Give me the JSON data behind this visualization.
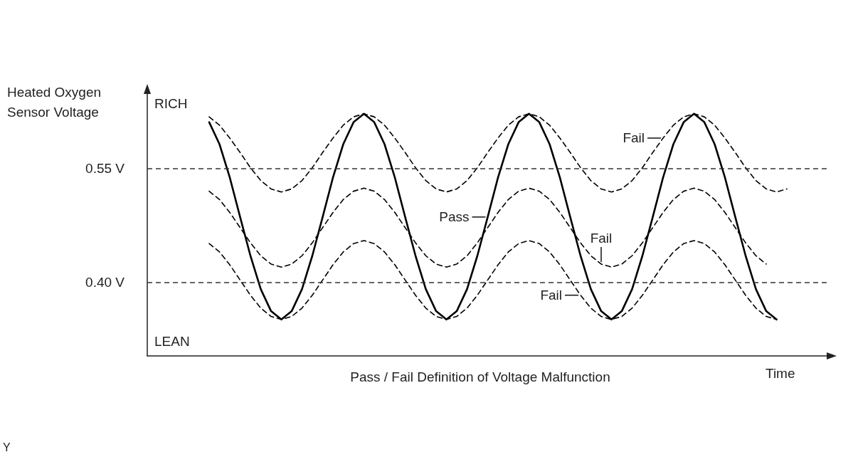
{
  "chart_data": {
    "type": "line",
    "title": "Pass / Fail Definition of Voltage Malfunction",
    "xlabel": "Time",
    "ylabel": "Heated Oxygen Sensor Voltage",
    "annotations": [
      "RICH",
      "LEAN",
      "Y"
    ],
    "categories": [
      null,
      null,
      null,
      null,
      null,
      null,
      null,
      null,
      null,
      null,
      null,
      null,
      null,
      null,
      null,
      null,
      null,
      null,
      null,
      null,
      null,
      null,
      null,
      null,
      null,
      null,
      null,
      null,
      null,
      null,
      null,
      null,
      null,
      null,
      null,
      null,
      null,
      null,
      null,
      null,
      null,
      null,
      null,
      null,
      null,
      null,
      null,
      null,
      null,
      null,
      null,
      null,
      null,
      null,
      null,
      null,
      null,
      null,
      null,
      null,
      null,
      null,
      null,
      null,
      null,
      null,
      null
    ],
    "series": [
      {
        "name": "Pass",
        "color": "#000000",
        "line_style": "solid",
        "values": [
          null,
          null,
          null,
          null,
          null,
          null,
          0.611,
          0.582,
          0.538,
          0.486,
          0.435,
          0.391,
          0.362,
          0.351,
          0.362,
          0.391,
          0.435,
          0.486,
          0.538,
          0.582,
          0.611,
          0.622,
          0.611,
          0.582,
          0.538,
          0.486,
          0.435,
          0.391,
          0.362,
          0.351,
          0.362,
          0.391,
          0.435,
          0.486,
          0.538,
          0.582,
          0.611,
          0.622,
          0.611,
          0.582,
          0.538,
          0.486,
          0.435,
          0.391,
          0.362,
          0.351,
          0.362,
          0.391,
          0.435,
          0.486,
          0.538,
          0.582,
          0.611,
          0.622,
          0.611,
          0.582,
          0.538,
          0.486,
          0.435,
          0.391,
          0.362,
          0.351,
          null,
          null,
          null,
          null,
          null
        ]
      },
      {
        "name": "Fail",
        "color": "#000000",
        "line_style": "dashed",
        "values": [
          null,
          null,
          null,
          null,
          null,
          null,
          0.618,
          0.607,
          0.59,
          0.571,
          0.551,
          0.534,
          0.523,
          0.519,
          0.523,
          0.534,
          0.551,
          0.571,
          0.59,
          0.607,
          0.618,
          0.622,
          0.618,
          0.607,
          0.59,
          0.571,
          0.551,
          0.534,
          0.523,
          0.519,
          0.523,
          0.534,
          0.551,
          0.571,
          0.59,
          0.607,
          0.618,
          0.622,
          0.618,
          0.607,
          0.59,
          0.571,
          0.551,
          0.534,
          0.523,
          0.519,
          0.523,
          0.534,
          0.551,
          0.571,
          0.59,
          0.607,
          0.618,
          0.622,
          0.618,
          0.607,
          0.59,
          0.571,
          0.551,
          0.534,
          0.523,
          0.519,
          0.523,
          null,
          null,
          null,
          null
        ]
      },
      {
        "name": "Fail",
        "color": "#000000",
        "line_style": "dashed",
        "values": [
          null,
          null,
          null,
          null,
          null,
          null,
          0.52,
          0.509,
          0.492,
          0.472,
          0.452,
          0.435,
          0.424,
          0.42,
          0.424,
          0.435,
          0.452,
          0.472,
          0.492,
          0.509,
          0.52,
          0.524,
          0.52,
          0.509,
          0.492,
          0.472,
          0.452,
          0.435,
          0.424,
          0.42,
          0.424,
          0.435,
          0.452,
          0.472,
          0.492,
          0.509,
          0.52,
          0.524,
          0.52,
          0.509,
          0.492,
          0.472,
          0.452,
          0.435,
          0.424,
          0.42,
          0.424,
          0.435,
          0.452,
          0.472,
          0.492,
          0.509,
          0.52,
          0.524,
          0.52,
          0.509,
          0.492,
          0.472,
          0.452,
          0.435,
          0.424,
          null,
          null,
          null,
          null,
          null,
          null
        ]
      },
      {
        "name": "Fail",
        "color": "#000000",
        "line_style": "dashed",
        "values": [
          null,
          null,
          null,
          null,
          null,
          null,
          0.451,
          0.44,
          0.423,
          0.403,
          0.383,
          0.366,
          0.355,
          0.351,
          0.355,
          0.366,
          0.383,
          0.403,
          0.423,
          0.44,
          0.451,
          0.455,
          0.451,
          0.44,
          0.423,
          0.403,
          0.383,
          0.366,
          0.355,
          0.351,
          0.355,
          0.366,
          0.383,
          0.403,
          0.423,
          0.44,
          0.451,
          0.455,
          0.451,
          0.44,
          0.423,
          0.403,
          0.383,
          0.366,
          0.355,
          0.351,
          0.355,
          0.366,
          0.383,
          0.403,
          0.423,
          0.44,
          0.451,
          0.455,
          0.451,
          0.44,
          0.423,
          0.403,
          0.383,
          0.366,
          0.355,
          0.351,
          null,
          null,
          null,
          null,
          null
        ]
      }
    ],
    "ylim": [
      0.303,
      0.65
    ],
    "yticks": [
      {
        "value": 0.55,
        "label": "0.55 V"
      },
      {
        "value": 0.4,
        "label": "0.40 V"
      }
    ],
    "ref_lines": [
      {
        "axis": "y",
        "value": 0.55,
        "color": "#333333",
        "line_style": "dashed"
      },
      {
        "axis": "y",
        "value": 0.4,
        "color": "#333333",
        "line_style": "dashed"
      }
    ],
    "tick_labels": "y",
    "marker": "none",
    "grid": false
  }
}
